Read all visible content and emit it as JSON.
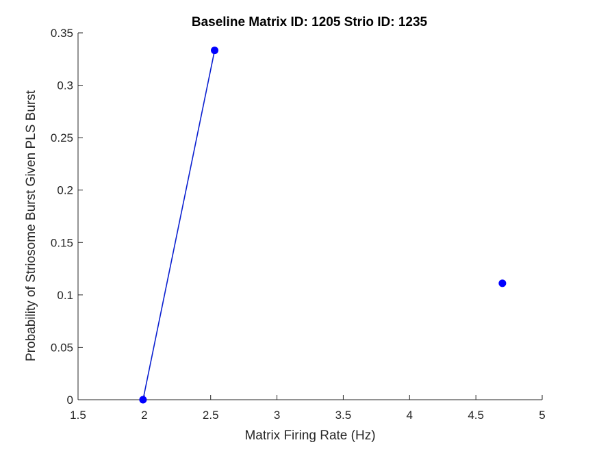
{
  "chart_data": {
    "type": "line",
    "title": "Baseline Matrix ID: 1205 Strio ID: 1235",
    "xlabel": "Matrix Firing Rate (Hz)",
    "ylabel": "Probability of Striosome Burst Given PLS Burst",
    "xlim": [
      1.5,
      5
    ],
    "ylim": [
      0,
      0.35
    ],
    "xticks": [
      1.5,
      2,
      2.5,
      3,
      3.5,
      4,
      4.5,
      5
    ],
    "xtick_labels": [
      "1.5",
      "2",
      "2.5",
      "3",
      "3.5",
      "4",
      "4.5",
      "5"
    ],
    "yticks": [
      0,
      0.05,
      0.1,
      0.15,
      0.2,
      0.25,
      0.3,
      0.35
    ],
    "ytick_labels": [
      "0",
      "0.05",
      "0.1",
      "0.15",
      "0.2",
      "0.25",
      "0.3",
      "0.35"
    ],
    "grid": false,
    "series": [
      {
        "color": "#0000ff",
        "line_color": "#0a1fd0",
        "x": [
          1.99,
          2.53,
          4.7
        ],
        "y": [
          0,
          0.3333,
          0.1111
        ],
        "connected": [
          true,
          true,
          false
        ]
      }
    ]
  }
}
